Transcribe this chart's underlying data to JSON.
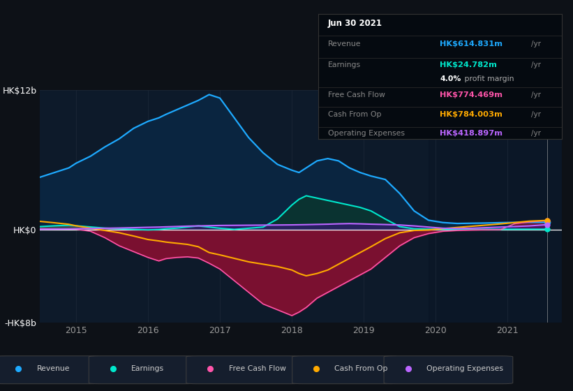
{
  "bg_color": "#0d1117",
  "plot_bg_color": "#0d1a2a",
  "tooltip": {
    "date": "Jun 30 2021",
    "revenue_label": "Revenue",
    "revenue_value": "HK$614.831m",
    "earnings_label": "Earnings",
    "earnings_value": "HK$24.782m",
    "profit_margin": "4.0%",
    "fcf_label": "Free Cash Flow",
    "fcf_value": "HK$774.469m",
    "cashop_label": "Cash From Op",
    "cashop_value": "HK$784.003m",
    "opex_label": "Operating Expenses",
    "opex_value": "HK$418.897m"
  },
  "ylim": [
    -8000,
    12000
  ],
  "xlim": [
    2014.5,
    2021.75
  ],
  "yticks": [
    -8000,
    0,
    12000
  ],
  "ytick_labels": [
    "-HK$8b",
    "HK$0",
    "HK$12b"
  ],
  "xticks": [
    2015,
    2016,
    2017,
    2018,
    2019,
    2020,
    2021
  ],
  "grid_color": "#253040",
  "zero_line_color": "#ffffff",
  "revenue_color": "#1eaaff",
  "revenue_fill": "#0a2540",
  "earnings_color": "#00e8cc",
  "earnings_fill": "#0a3530",
  "fcf_color": "#ff55aa",
  "fcf_fill": "#7a1030",
  "cashop_color": "#ffaa00",
  "cashop_fill": "#6a3000",
  "opex_color": "#bb66ff",
  "opex_fill": "#3a1580",
  "gray_fill": "#505060",
  "t": [
    2014.5,
    2014.7,
    2014.9,
    2015.0,
    2015.2,
    2015.4,
    2015.6,
    2015.8,
    2016.0,
    2016.15,
    2016.25,
    2016.4,
    2016.55,
    2016.7,
    2016.85,
    2017.0,
    2017.2,
    2017.4,
    2017.6,
    2017.8,
    2018.0,
    2018.1,
    2018.2,
    2018.35,
    2018.5,
    2018.65,
    2018.8,
    2018.95,
    2019.1,
    2019.3,
    2019.5,
    2019.7,
    2019.9,
    2020.1,
    2020.3,
    2020.5,
    2020.7,
    2020.9,
    2021.1,
    2021.3,
    2021.55
  ],
  "revenue": [
    4500,
    4900,
    5300,
    5700,
    6300,
    7100,
    7800,
    8700,
    9300,
    9600,
    9900,
    10300,
    10700,
    11100,
    11600,
    11300,
    9600,
    7900,
    6600,
    5600,
    5100,
    4900,
    5300,
    5900,
    6100,
    5900,
    5300,
    4900,
    4600,
    4300,
    3100,
    1600,
    800,
    600,
    520,
    540,
    560,
    590,
    610,
    620,
    615
  ],
  "earnings": [
    250,
    320,
    370,
    320,
    220,
    120,
    60,
    10,
    -30,
    0,
    60,
    120,
    220,
    310,
    210,
    110,
    10,
    110,
    210,
    900,
    2100,
    2600,
    2900,
    2700,
    2500,
    2300,
    2100,
    1900,
    1600,
    900,
    250,
    60,
    30,
    15,
    10,
    12,
    16,
    20,
    23,
    24,
    25
  ],
  "fcf": [
    60,
    50,
    35,
    25,
    -150,
    -700,
    -1400,
    -1900,
    -2400,
    -2700,
    -2500,
    -2400,
    -2350,
    -2450,
    -2900,
    -3400,
    -4400,
    -5400,
    -6400,
    -6900,
    -7400,
    -7100,
    -6700,
    -5900,
    -5400,
    -4900,
    -4400,
    -3900,
    -3400,
    -2400,
    -1400,
    -700,
    -350,
    -150,
    -80,
    -40,
    -20,
    -10,
    500,
    650,
    775
  ],
  "cashop": [
    700,
    580,
    450,
    320,
    120,
    -80,
    -280,
    -560,
    -860,
    -980,
    -1080,
    -1180,
    -1280,
    -1480,
    -1980,
    -2180,
    -2480,
    -2780,
    -2980,
    -3180,
    -3480,
    -3780,
    -3980,
    -3780,
    -3480,
    -2980,
    -2480,
    -1980,
    -1480,
    -780,
    -280,
    -80,
    -40,
    80,
    180,
    280,
    380,
    480,
    600,
    720,
    784
  ],
  "opex": [
    25,
    35,
    45,
    60,
    90,
    110,
    130,
    160,
    190,
    210,
    230,
    260,
    290,
    310,
    330,
    350,
    360,
    370,
    380,
    390,
    400,
    410,
    420,
    440,
    460,
    490,
    510,
    490,
    460,
    430,
    390,
    310,
    210,
    110,
    90,
    110,
    160,
    210,
    260,
    310,
    419
  ]
}
